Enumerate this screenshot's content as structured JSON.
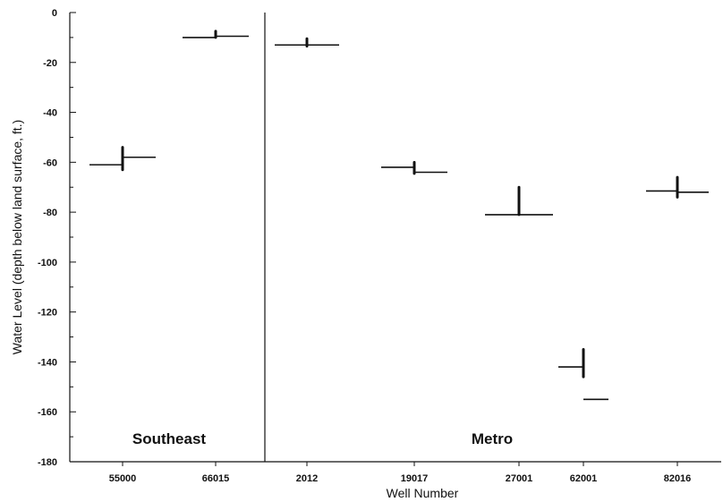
{
  "chart_data": {
    "type": "scatter",
    "title": "",
    "xlabel": "Well Number",
    "ylabel": "Water Level (depth below land surface, ft.)",
    "ylim": [
      -180,
      0
    ],
    "y_ticks": [
      0,
      -20,
      -40,
      -60,
      -80,
      -100,
      -120,
      -140,
      -160,
      -180
    ],
    "categories": [
      "55000",
      "66015",
      "2012",
      "19017",
      "27001",
      "62001",
      "82016"
    ],
    "regions": [
      {
        "label": "Southeast",
        "categories": [
          "55000",
          "66015"
        ]
      },
      {
        "label": "Metro",
        "categories": [
          "2012",
          "19017",
          "27001",
          "62001",
          "82016"
        ]
      }
    ],
    "series": [
      {
        "values": [
          {
            "well": "55000",
            "left_level": -61,
            "right_level": -58,
            "range": [
              -63,
              -54
            ]
          },
          {
            "well": "66015",
            "left_level": -10,
            "right_level": -9.5,
            "range": [
              -10,
              -7.5
            ]
          },
          {
            "well": "2012",
            "left_level": -13,
            "right_level": -13,
            "range": [
              -13.5,
              -10.5
            ]
          },
          {
            "well": "19017",
            "left_level": -62,
            "right_level": -64,
            "range": [
              -64.5,
              -60
            ]
          },
          {
            "well": "27001",
            "left_level": -81,
            "right_level": -81,
            "range": [
              -81,
              -70
            ]
          },
          {
            "well": "62001",
            "left_level": -142,
            "right_level": -155,
            "range": [
              -146,
              -135
            ]
          },
          {
            "well": "82016",
            "left_level": -71.5,
            "right_level": -72,
            "range": [
              -74,
              -66
            ]
          }
        ]
      }
    ],
    "grid": false,
    "legend": "none"
  }
}
